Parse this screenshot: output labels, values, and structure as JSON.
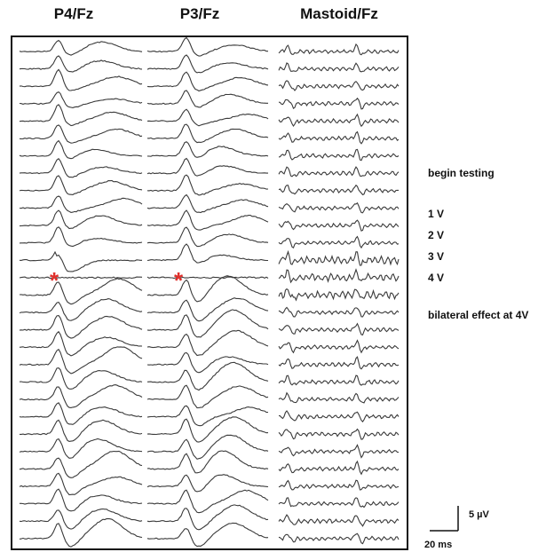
{
  "headers": {
    "p4": "P4/Fz",
    "p3": "P3/Fz",
    "mastoid": "Mastoid/Fz"
  },
  "annotations": {
    "begin": "begin testing",
    "v1": "1 V",
    "v2": "2 V",
    "v3": "3 V",
    "v4": "4 V",
    "bilateral": "bilateral effect at 4V"
  },
  "markers": {
    "p4": "*",
    "p3": "*"
  },
  "scale": {
    "voltage": "5 µV",
    "time": "20 ms"
  },
  "colors": {
    "trace": "#3a3a3a",
    "frame": "#111111",
    "marker": "#e0312d"
  }
}
